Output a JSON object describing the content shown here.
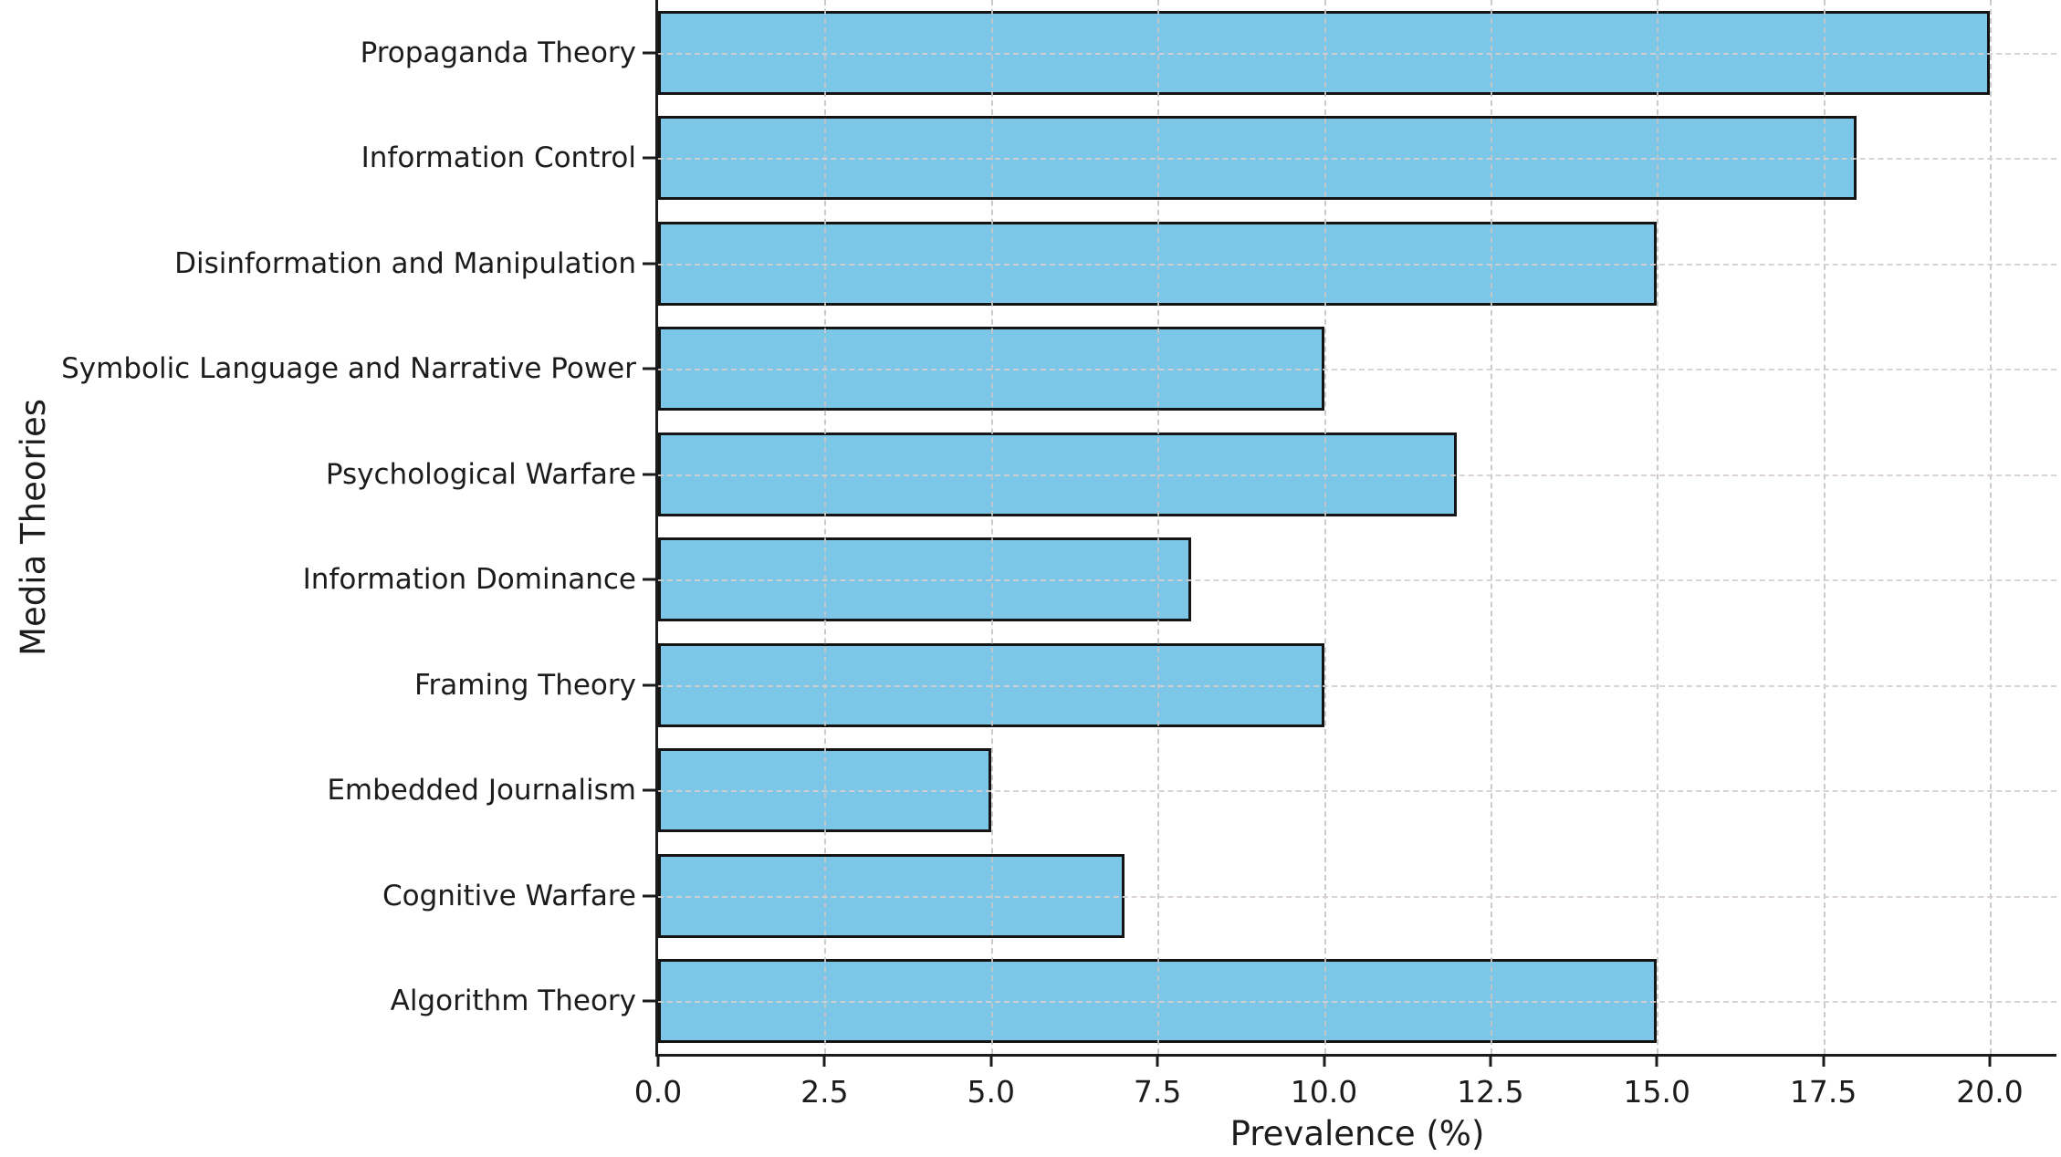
{
  "chart_data": {
    "type": "bar",
    "orientation": "horizontal",
    "title": "",
    "categories": [
      "Propaganda Theory",
      "Information Control",
      "Disinformation and Manipulation",
      "Symbolic Language and Narrative Power",
      "Psychological Warfare",
      "Information Dominance",
      "Framing Theory",
      "Embedded Journalism",
      "Cognitive Warfare",
      "Algorithm Theory"
    ],
    "values": [
      20,
      18,
      15,
      10,
      12,
      8,
      10,
      5,
      7,
      15
    ],
    "xlabel": "Prevalence (%)",
    "ylabel": "Media Theories",
    "x_ticks": [
      "0.0",
      "2.5",
      "5.0",
      "7.5",
      "10.0",
      "12.5",
      "15.0",
      "17.5",
      "20.0"
    ],
    "x_tick_values": [
      0,
      2.5,
      5,
      7.5,
      10,
      12.5,
      15,
      17.5,
      20
    ],
    "xlim": [
      0,
      21
    ],
    "grid": "dashed-both-axes-over-bars",
    "legend": "none",
    "bar_color": "#7cc7e8",
    "bar_edge_color": "#141414",
    "grid_color": "#c6c6c6",
    "spine_color": "#1b1b1b",
    "text_color": "#1c1c1c",
    "background_color": "#ffffff"
  }
}
